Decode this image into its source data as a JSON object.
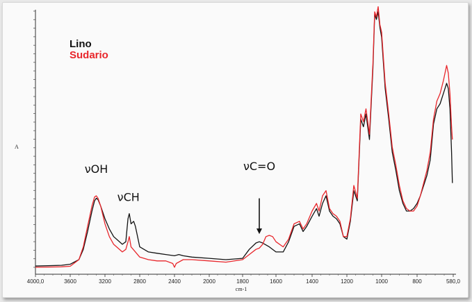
{
  "chart_data": {
    "type": "line",
    "title": "",
    "xlabel": "cm-1",
    "ylabel": "A",
    "xlim": [
      4000,
      580
    ],
    "x_reversed": true,
    "x_ticks": [
      4000,
      3600,
      3200,
      2800,
      2400,
      2000,
      1800,
      1600,
      1400,
      1200,
      1000,
      800,
      580
    ],
    "x_tick_labels": [
      "4000,0",
      "3600",
      "3200",
      "2800",
      "2400",
      "2000",
      "1800",
      "1600",
      "1400",
      "1200",
      "1000",
      "800",
      "580,0"
    ],
    "ylim": [
      0,
      1
    ],
    "legend_position": "top-left",
    "grid": false,
    "series": [
      {
        "name": "Lino",
        "color": "#111111",
        "points": [
          [
            4000,
            0.005
          ],
          [
            3700,
            0.008
          ],
          [
            3600,
            0.012
          ],
          [
            3500,
            0.03
          ],
          [
            3450,
            0.07
          ],
          [
            3400,
            0.14
          ],
          [
            3350,
            0.22
          ],
          [
            3320,
            0.26
          ],
          [
            3300,
            0.27
          ],
          [
            3280,
            0.265
          ],
          [
            3250,
            0.24
          ],
          [
            3200,
            0.19
          ],
          [
            3150,
            0.15
          ],
          [
            3100,
            0.12
          ],
          [
            3000,
            0.09
          ],
          [
            2960,
            0.1
          ],
          [
            2935,
            0.19
          ],
          [
            2920,
            0.21
          ],
          [
            2900,
            0.17
          ],
          [
            2870,
            0.18
          ],
          [
            2850,
            0.16
          ],
          [
            2800,
            0.08
          ],
          [
            2700,
            0.06
          ],
          [
            2600,
            0.055
          ],
          [
            2500,
            0.05
          ],
          [
            2400,
            0.045
          ],
          [
            2350,
            0.05
          ],
          [
            2300,
            0.045
          ],
          [
            2200,
            0.04
          ],
          [
            2000,
            0.035
          ],
          [
            1900,
            0.03
          ],
          [
            1800,
            0.035
          ],
          [
            1760,
            0.07
          ],
          [
            1720,
            0.095
          ],
          [
            1700,
            0.1
          ],
          [
            1680,
            0.095
          ],
          [
            1640,
            0.08
          ],
          [
            1600,
            0.06
          ],
          [
            1560,
            0.06
          ],
          [
            1530,
            0.1
          ],
          [
            1500,
            0.16
          ],
          [
            1470,
            0.17
          ],
          [
            1450,
            0.14
          ],
          [
            1430,
            0.16
          ],
          [
            1400,
            0.2
          ],
          [
            1375,
            0.23
          ],
          [
            1360,
            0.2
          ],
          [
            1340,
            0.25
          ],
          [
            1320,
            0.28
          ],
          [
            1300,
            0.22
          ],
          [
            1280,
            0.2
          ],
          [
            1260,
            0.19
          ],
          [
            1240,
            0.17
          ],
          [
            1220,
            0.12
          ],
          [
            1200,
            0.11
          ],
          [
            1180,
            0.18
          ],
          [
            1160,
            0.3
          ],
          [
            1140,
            0.26
          ],
          [
            1120,
            0.58
          ],
          [
            1105,
            0.55
          ],
          [
            1090,
            0.6
          ],
          [
            1070,
            0.5
          ],
          [
            1050,
            0.78
          ],
          [
            1040,
            0.99
          ],
          [
            1030,
            0.97
          ],
          [
            1020,
            1.0
          ],
          [
            1010,
            0.94
          ],
          [
            1000,
            0.9
          ],
          [
            980,
            0.7
          ],
          [
            960,
            0.58
          ],
          [
            940,
            0.45
          ],
          [
            920,
            0.38
          ],
          [
            900,
            0.3
          ],
          [
            880,
            0.25
          ],
          [
            860,
            0.22
          ],
          [
            840,
            0.22
          ],
          [
            820,
            0.23
          ],
          [
            800,
            0.25
          ],
          [
            780,
            0.28
          ],
          [
            760,
            0.32
          ],
          [
            740,
            0.36
          ],
          [
            720,
            0.42
          ],
          [
            700,
            0.56
          ],
          [
            680,
            0.62
          ],
          [
            660,
            0.64
          ],
          [
            640,
            0.68
          ],
          [
            620,
            0.72
          ],
          [
            610,
            0.7
          ],
          [
            600,
            0.62
          ],
          [
            590,
            0.45
          ],
          [
            585,
            0.33
          ]
        ]
      },
      {
        "name": "Sudario",
        "color": "#e8262b",
        "points": [
          [
            4000,
            0.0
          ],
          [
            3700,
            0.002
          ],
          [
            3600,
            0.004
          ],
          [
            3500,
            0.03
          ],
          [
            3450,
            0.08
          ],
          [
            3400,
            0.16
          ],
          [
            3350,
            0.24
          ],
          [
            3320,
            0.275
          ],
          [
            3300,
            0.28
          ],
          [
            3280,
            0.27
          ],
          [
            3250,
            0.24
          ],
          [
            3200,
            0.17
          ],
          [
            3150,
            0.12
          ],
          [
            3100,
            0.09
          ],
          [
            3000,
            0.06
          ],
          [
            2960,
            0.07
          ],
          [
            2935,
            0.1
          ],
          [
            2920,
            0.12
          ],
          [
            2900,
            0.08
          ],
          [
            2850,
            0.06
          ],
          [
            2800,
            0.04
          ],
          [
            2700,
            0.03
          ],
          [
            2600,
            0.025
          ],
          [
            2500,
            0.025
          ],
          [
            2420,
            0.015
          ],
          [
            2400,
            0.0
          ],
          [
            2380,
            0.015
          ],
          [
            2300,
            0.03
          ],
          [
            2200,
            0.03
          ],
          [
            2000,
            0.025
          ],
          [
            1900,
            0.02
          ],
          [
            1800,
            0.03
          ],
          [
            1760,
            0.05
          ],
          [
            1720,
            0.07
          ],
          [
            1700,
            0.075
          ],
          [
            1680,
            0.09
          ],
          [
            1660,
            0.12
          ],
          [
            1640,
            0.125
          ],
          [
            1620,
            0.12
          ],
          [
            1600,
            0.1
          ],
          [
            1560,
            0.08
          ],
          [
            1530,
            0.11
          ],
          [
            1500,
            0.17
          ],
          [
            1470,
            0.18
          ],
          [
            1450,
            0.15
          ],
          [
            1430,
            0.17
          ],
          [
            1400,
            0.22
          ],
          [
            1375,
            0.25
          ],
          [
            1360,
            0.22
          ],
          [
            1340,
            0.28
          ],
          [
            1320,
            0.3
          ],
          [
            1300,
            0.23
          ],
          [
            1280,
            0.21
          ],
          [
            1260,
            0.2
          ],
          [
            1240,
            0.18
          ],
          [
            1220,
            0.12
          ],
          [
            1200,
            0.12
          ],
          [
            1180,
            0.19
          ],
          [
            1160,
            0.32
          ],
          [
            1140,
            0.27
          ],
          [
            1120,
            0.6
          ],
          [
            1105,
            0.57
          ],
          [
            1090,
            0.62
          ],
          [
            1070,
            0.52
          ],
          [
            1050,
            0.8
          ],
          [
            1040,
            1.0
          ],
          [
            1030,
            0.98
          ],
          [
            1020,
            1.02
          ],
          [
            1010,
            0.95
          ],
          [
            1000,
            0.92
          ],
          [
            980,
            0.72
          ],
          [
            960,
            0.6
          ],
          [
            940,
            0.47
          ],
          [
            920,
            0.4
          ],
          [
            900,
            0.32
          ],
          [
            880,
            0.26
          ],
          [
            860,
            0.23
          ],
          [
            840,
            0.22
          ],
          [
            820,
            0.22
          ],
          [
            800,
            0.24
          ],
          [
            780,
            0.28
          ],
          [
            760,
            0.33
          ],
          [
            740,
            0.38
          ],
          [
            720,
            0.45
          ],
          [
            700,
            0.58
          ],
          [
            680,
            0.65
          ],
          [
            660,
            0.68
          ],
          [
            640,
            0.73
          ],
          [
            620,
            0.79
          ],
          [
            610,
            0.76
          ],
          [
            600,
            0.68
          ],
          [
            590,
            0.55
          ],
          [
            585,
            0.5
          ]
        ]
      }
    ],
    "annotations": [
      {
        "text": "νOH",
        "x": 3300,
        "y": 0.37
      },
      {
        "text": "νCH",
        "x": 2930,
        "y": 0.26
      },
      {
        "text": "νC=O",
        "x": 1700,
        "y": 0.38,
        "arrow": true,
        "arrow_from": 0.27,
        "arrow_to": 0.13
      }
    ],
    "arrow_text_unused": ""
  }
}
